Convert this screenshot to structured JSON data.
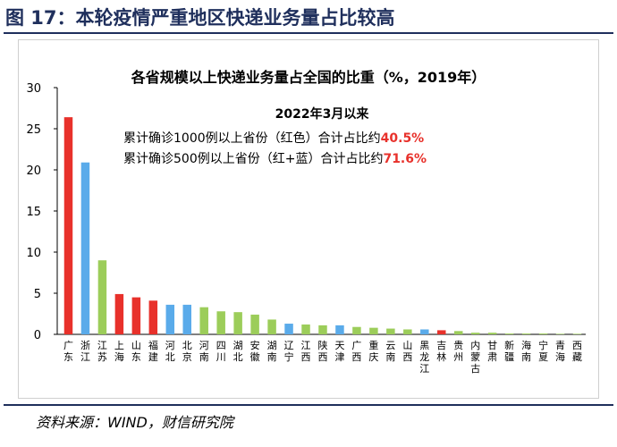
{
  "figure_title": "图 17：本轮疫情严重地区快递业务量占比较高",
  "source": "资料来源：WIND，财信研究院",
  "chart_data": {
    "type": "bar",
    "title": "各省规模以上快递业务量占全国的比重（%，2019年）",
    "xlabel": "",
    "ylabel": "",
    "ylim": [
      0,
      30
    ],
    "yticks": [
      0,
      5,
      10,
      15,
      20,
      25,
      30
    ],
    "grid": false,
    "legend": "none",
    "annotations": {
      "heading": "2022年3月以来",
      "line1_prefix": "累计确诊1000例以上省份（红色）合计占比约",
      "line1_value": "40.5%",
      "line2_prefix": "累计确诊500例以上省份（红+蓝）合计占比约",
      "line2_value": "71.6%"
    },
    "colors": {
      "red": "#e8312b",
      "blue": "#5aabea",
      "green": "#9ccd5a",
      "highlight": "#e8312b"
    },
    "categories": [
      "广东",
      "浙江",
      "江苏",
      "上海",
      "山东",
      "福建",
      "河北",
      "北京",
      "河南",
      "四川",
      "湖北",
      "安徽",
      "湖南",
      "辽宁",
      "江西",
      "陕西",
      "天津",
      "广西",
      "重庆",
      "云南",
      "山西",
      "黑龙江",
      "吉林",
      "贵州",
      "内蒙古",
      "甘肃",
      "新疆",
      "海南",
      "宁夏",
      "青海",
      "西藏"
    ],
    "values": [
      26.4,
      20.9,
      9.0,
      4.9,
      4.5,
      4.1,
      3.6,
      3.6,
      3.3,
      2.8,
      2.7,
      2.4,
      1.8,
      1.3,
      1.2,
      1.1,
      1.1,
      0.9,
      0.8,
      0.7,
      0.6,
      0.6,
      0.5,
      0.4,
      0.2,
      0.2,
      0.1,
      0.1,
      0.1,
      0.05,
      0.02
    ],
    "bar_colors": [
      "red",
      "blue",
      "green",
      "red",
      "red",
      "red",
      "blue",
      "blue",
      "green",
      "green",
      "green",
      "green",
      "green",
      "blue",
      "green",
      "green",
      "blue",
      "green",
      "green",
      "green",
      "green",
      "blue",
      "red",
      "green",
      "green",
      "green",
      "green",
      "green",
      "green",
      "green",
      "green"
    ]
  }
}
